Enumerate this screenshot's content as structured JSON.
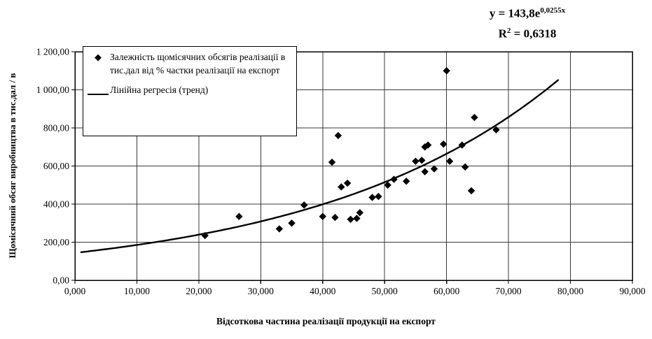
{
  "equation": {
    "line1_base": "y = 143,8e",
    "line1_exponent": "0,0255x",
    "line2_base": "R",
    "line2_exponent": "2",
    "line2_value": " = 0,6318"
  },
  "legend": {
    "items": [
      {
        "marker": "diamond",
        "label": "Залежність щомісячних обсягів реалізації в тис.дал від % частки реалізації на експорт"
      },
      {
        "marker": "line",
        "label": "Лінійна регресія (тренд)"
      }
    ]
  },
  "colors": {
    "foreground": "#000000",
    "background": "#ffffff",
    "gridline": "#3a3a3a"
  },
  "chart_data": {
    "type": "scatter",
    "title": "",
    "xlabel": "Відсоткова частина реалізації продукції на експорт",
    "ylabel": "Щомісячний обсяг виробництва в тис.дал / в",
    "xlim": [
      0,
      90
    ],
    "ylim": [
      0,
      1200
    ],
    "grid": true,
    "legend_position": "top-left-inside",
    "x_ticks": [
      {
        "value": 0,
        "label": "0,000"
      },
      {
        "value": 10,
        "label": "10,000"
      },
      {
        "value": 20,
        "label": "20,000"
      },
      {
        "value": 30,
        "label": "30,000"
      },
      {
        "value": 40,
        "label": "40,000"
      },
      {
        "value": 50,
        "label": "50,000"
      },
      {
        "value": 60,
        "label": "60,000"
      },
      {
        "value": 70,
        "label": "70,000"
      },
      {
        "value": 80,
        "label": "80,000"
      },
      {
        "value": 90,
        "label": "90,000"
      }
    ],
    "y_ticks": [
      {
        "value": 0,
        "label": "0,00"
      },
      {
        "value": 200,
        "label": "200,00"
      },
      {
        "value": 400,
        "label": "400,00"
      },
      {
        "value": 600,
        "label": "600,00"
      },
      {
        "value": 800,
        "label": "800,00"
      },
      {
        "value": 1000,
        "label": "1 000,00"
      },
      {
        "value": 1200,
        "label": "1 200,00"
      }
    ],
    "series": [
      {
        "name": "Залежність щомісячних обсягів реалізації в тис.дал від % частки реалізації на експорт",
        "type": "scatter",
        "marker": "diamond",
        "points": [
          [
            21,
            235
          ],
          [
            26.5,
            335
          ],
          [
            33,
            270
          ],
          [
            35,
            300
          ],
          [
            37,
            395
          ],
          [
            40,
            335
          ],
          [
            41.5,
            620
          ],
          [
            42,
            330
          ],
          [
            42.5,
            760
          ],
          [
            43,
            490
          ],
          [
            44,
            510
          ],
          [
            44.5,
            320
          ],
          [
            45.5,
            325
          ],
          [
            46,
            355
          ],
          [
            48,
            435
          ],
          [
            49,
            440
          ],
          [
            50.5,
            500
          ],
          [
            51.5,
            530
          ],
          [
            53.5,
            520
          ],
          [
            55,
            625
          ],
          [
            56,
            630
          ],
          [
            56.5,
            570
          ],
          [
            56.5,
            700
          ],
          [
            57,
            710
          ],
          [
            58,
            585
          ],
          [
            59.5,
            715
          ],
          [
            60,
            1100
          ],
          [
            60.5,
            625
          ],
          [
            62.5,
            710
          ],
          [
            63,
            595
          ],
          [
            64,
            470
          ],
          [
            64.5,
            855
          ],
          [
            68,
            790
          ]
        ]
      },
      {
        "name": "Лінійна регресія (тренд)",
        "type": "exponential_trend",
        "equation_text": "y = 143,8e^(0,0255x)",
        "r_squared": 0.6318,
        "a": 143.8,
        "b": 0.0255,
        "x_range": [
          1,
          78
        ]
      }
    ]
  }
}
